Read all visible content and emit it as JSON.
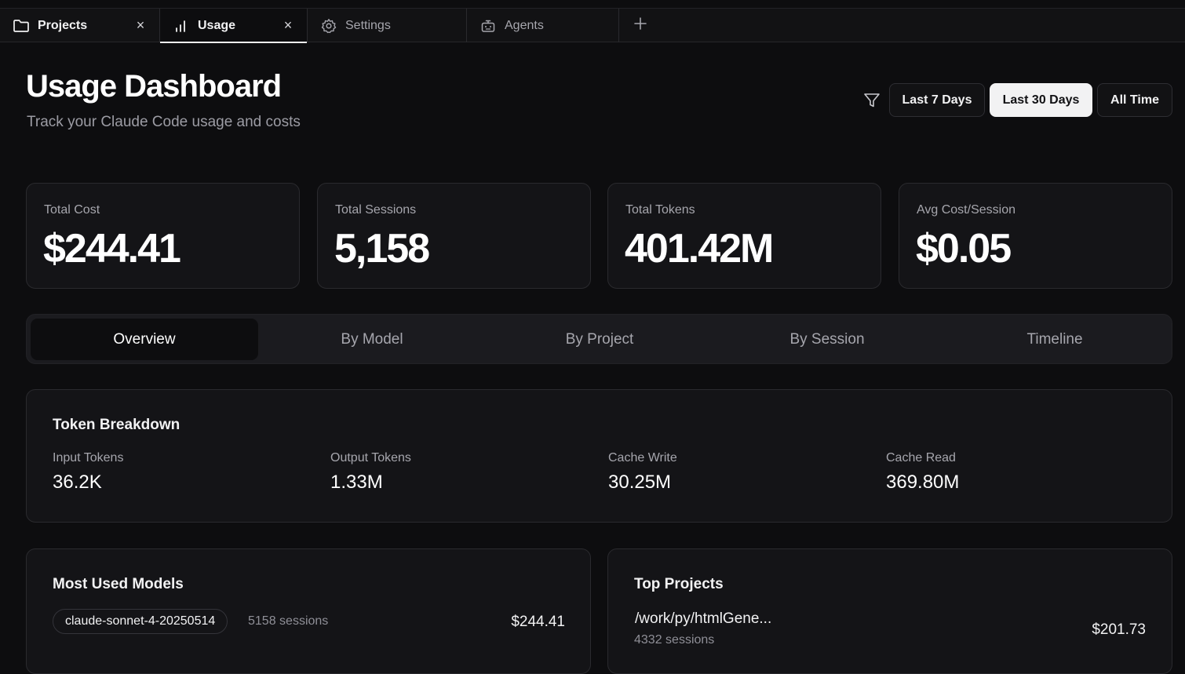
{
  "tabs": [
    {
      "label": "Projects",
      "icon": "folder-icon",
      "closable": true
    },
    {
      "label": "Usage",
      "icon": "bar-chart-icon",
      "closable": true,
      "active": true
    },
    {
      "label": "Settings",
      "icon": "gear-icon"
    },
    {
      "label": "Agents",
      "icon": "bot-icon"
    }
  ],
  "tab_close_glyph": "×",
  "header": {
    "title": "Usage Dashboard",
    "subtitle": "Track your Claude Code usage and costs"
  },
  "date_range": {
    "options": [
      "Last 7 Days",
      "Last 30 Days",
      "All Time"
    ],
    "selected": "Last 30 Days"
  },
  "stats": [
    {
      "label": "Total Cost",
      "value": "$244.41"
    },
    {
      "label": "Total Sessions",
      "value": "5,158"
    },
    {
      "label": "Total Tokens",
      "value": "401.42M"
    },
    {
      "label": "Avg Cost/Session",
      "value": "$0.05"
    }
  ],
  "view_tabs": {
    "items": [
      "Overview",
      "By Model",
      "By Project",
      "By Session",
      "Timeline"
    ],
    "selected": "Overview"
  },
  "token_breakdown": {
    "title": "Token Breakdown",
    "items": [
      {
        "label": "Input Tokens",
        "value": "36.2K"
      },
      {
        "label": "Output Tokens",
        "value": "1.33M"
      },
      {
        "label": "Cache Write",
        "value": "30.25M"
      },
      {
        "label": "Cache Read",
        "value": "369.80M"
      }
    ]
  },
  "most_used_models": {
    "title": "Most Used Models",
    "items": [
      {
        "model": "claude-sonnet-4-20250514",
        "sessions": "5158 sessions",
        "cost": "$244.41"
      }
    ]
  },
  "top_projects": {
    "title": "Top Projects",
    "items": [
      {
        "path": "/work/py/htmlGene...",
        "sessions": "4332 sessions",
        "cost": "$201.73"
      }
    ]
  },
  "colors": {
    "background": "#0d0d0f",
    "card": "#141417",
    "border": "#2a2a2e",
    "muted_text": "#a6a6ad",
    "selected_button": "#f2f2f3"
  }
}
